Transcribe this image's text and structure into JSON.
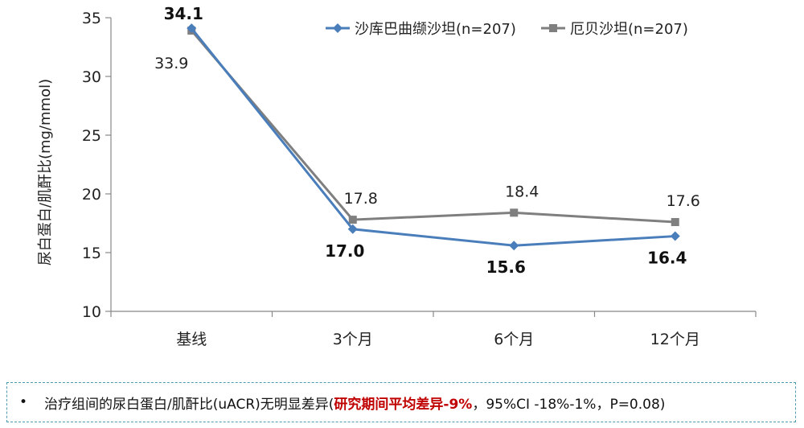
{
  "chart_data": {
    "type": "line",
    "ylabel": "尿白蛋白/肌酐比(mg/mmol)",
    "categories": [
      "基线",
      "3个月",
      "6个月",
      "12个月"
    ],
    "ylim": [
      10,
      35
    ],
    "yticks": [
      10,
      15,
      20,
      25,
      30,
      35
    ],
    "grid": false,
    "legend_position": "top-right",
    "series": [
      {
        "name": "沙库巴曲缬沙坦(n=207)",
        "values": [
          34.1,
          17.0,
          15.6,
          16.4
        ],
        "labels": [
          "34.1",
          "17.0",
          "15.6",
          "16.4"
        ],
        "color": "#4a7ebb",
        "marker": "diamond"
      },
      {
        "name": "厄贝沙坦(n=207)",
        "values": [
          33.9,
          17.8,
          18.4,
          17.6
        ],
        "labels": [
          "33.9",
          "17.8",
          "18.4",
          "17.6"
        ],
        "color": "#7f7f7f",
        "marker": "square"
      }
    ]
  },
  "note": {
    "bullet": "•",
    "text_before": "治疗组间的尿白蛋白/肌酐比(uACR)无明显差异(",
    "highlight": "研究期间平均差异-9%",
    "text_after": "，95%CI -18%-1%，P=0.08)",
    "highlight_color": "#c00000"
  }
}
